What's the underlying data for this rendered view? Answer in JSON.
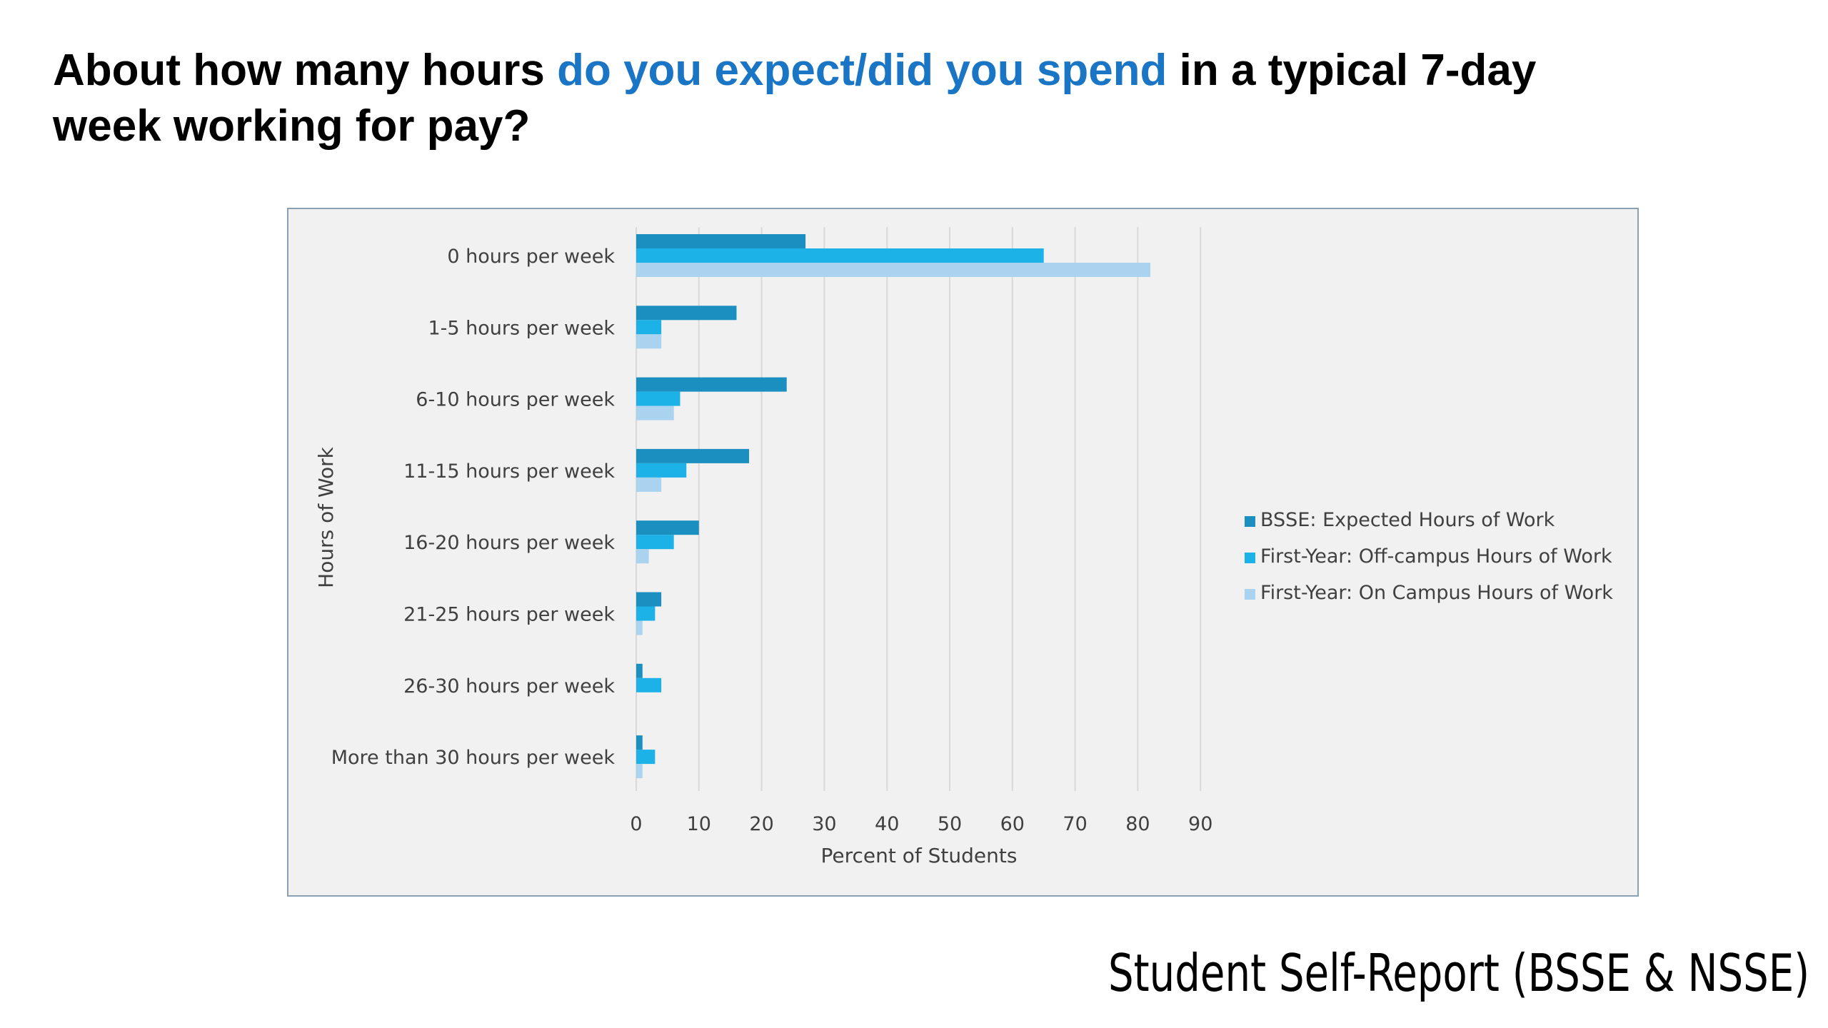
{
  "title": {
    "part1": "About how many hours ",
    "part2": "do you expect/did you spend",
    "part3": " in a typical 7-day week working for pay?"
  },
  "footer": "Student Self-Report (BSSE & NSSE)",
  "colors": {
    "highlight": "#1a75c4",
    "series": [
      "#1b8fbf",
      "#1cb2e8",
      "#a9d3ee"
    ],
    "grid": "#d9d9d9",
    "plot_background": "#f1f1f1"
  },
  "chart_data": {
    "type": "bar",
    "orientation": "horizontal",
    "categories": [
      "0 hours per week",
      "1-5 hours per week",
      "6-10 hours per week",
      "11-15 hours per week",
      "16-20 hours per week",
      "21-25 hours per week",
      "26-30 hours per week",
      "More than 30 hours per week"
    ],
    "series": [
      {
        "name": "BSSE:  Expected Hours of Work",
        "values": [
          27,
          16,
          24,
          18,
          10,
          4,
          1,
          1
        ]
      },
      {
        "name": "First-Year:  Off-campus Hours of Work",
        "values": [
          65,
          4,
          7,
          8,
          6,
          3,
          4,
          3
        ]
      },
      {
        "name": "First-Year:   On Campus Hours of Work",
        "values": [
          82,
          4,
          6,
          4,
          2,
          1,
          0,
          1
        ]
      }
    ],
    "xlabel": "Percent of Students",
    "ylabel": "Hours  of Work",
    "xlim": [
      0,
      90
    ],
    "xticks": [
      "0",
      "10",
      "20",
      "30",
      "40",
      "50",
      "60",
      "70",
      "80",
      "90"
    ],
    "grid": "vertical",
    "legend_position": "right"
  }
}
